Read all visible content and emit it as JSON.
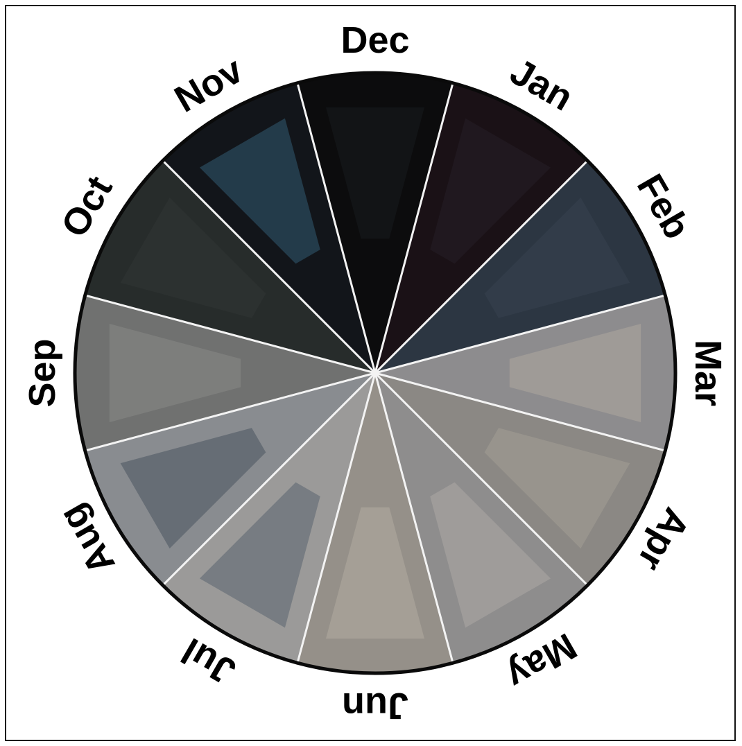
{
  "diagram": {
    "months": [
      {
        "label": "Dec",
        "fill": "#0c0c0d",
        "accent": "#1a1f22"
      },
      {
        "label": "Jan",
        "fill": "#1a1116",
        "accent": "#27222a"
      },
      {
        "label": "Feb",
        "fill": "#2c3642",
        "accent": "#394452"
      },
      {
        "label": "Mar",
        "fill": "#8d8c8e",
        "accent": "#b5aea2"
      },
      {
        "label": "Apr",
        "fill": "#8b8884",
        "accent": "#a9a49a"
      },
      {
        "label": "May",
        "fill": "#8e8d8d",
        "accent": "#b3b0ab"
      },
      {
        "label": "Jun",
        "fill": "#959089",
        "accent": "#b8b2a6"
      },
      {
        "label": "Jul",
        "fill": "#9b9a99",
        "accent": "#4c5866"
      },
      {
        "label": "Aug",
        "fill": "#898c90",
        "accent": "#3c4654"
      },
      {
        "label": "Sep",
        "fill": "#707170",
        "accent": "#8e8f8c"
      },
      {
        "label": "Oct",
        "fill": "#272c2b",
        "accent": "#323838"
      },
      {
        "label": "Nov",
        "fill": "#12151a",
        "accent": "#3a6a86"
      }
    ],
    "colors": {
      "divider": "#f3f3f3",
      "rim": "#0a0a0a",
      "text": "#000000"
    }
  }
}
